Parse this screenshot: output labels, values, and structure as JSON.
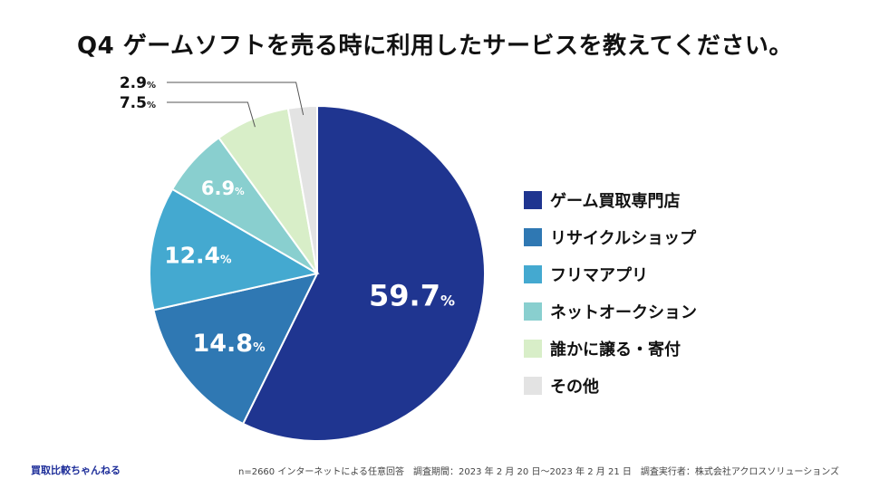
{
  "chart_data": {
    "type": "pie",
    "title": "Q4  ゲームソフトを売る時に利用したサービスを教えてください。",
    "unit": "%",
    "slices": [
      {
        "label": "ゲーム買取専門店",
        "value": 59.7,
        "display": "59.7",
        "color": "#1f3590"
      },
      {
        "label": "リサイクルショップ",
        "value": 14.8,
        "display": "14.8",
        "color": "#2f78b3"
      },
      {
        "label": "フリマアプリ",
        "value": 12.4,
        "display": "12.4",
        "color": "#44a9d0"
      },
      {
        "label": "ネットオークション",
        "value": 6.9,
        "display": "6.9",
        "color": "#89cfcf"
      },
      {
        "label": "誰かに譲る・寄付",
        "value": 7.5,
        "display": "7.5",
        "color": "#d8eec8"
      },
      {
        "label": "その他",
        "value": 2.9,
        "display": "2.9",
        "color": "#e3e3e3"
      }
    ],
    "legend_position": "right"
  },
  "footer": {
    "brand": "買取比較ちゃんねる",
    "note": "n=2660 インターネットによる任意回答　調査期間：2023 年 2 月 20 日～2023 年 2 月 21 日　調査実行者：株式会社アクロスソリューションズ"
  }
}
